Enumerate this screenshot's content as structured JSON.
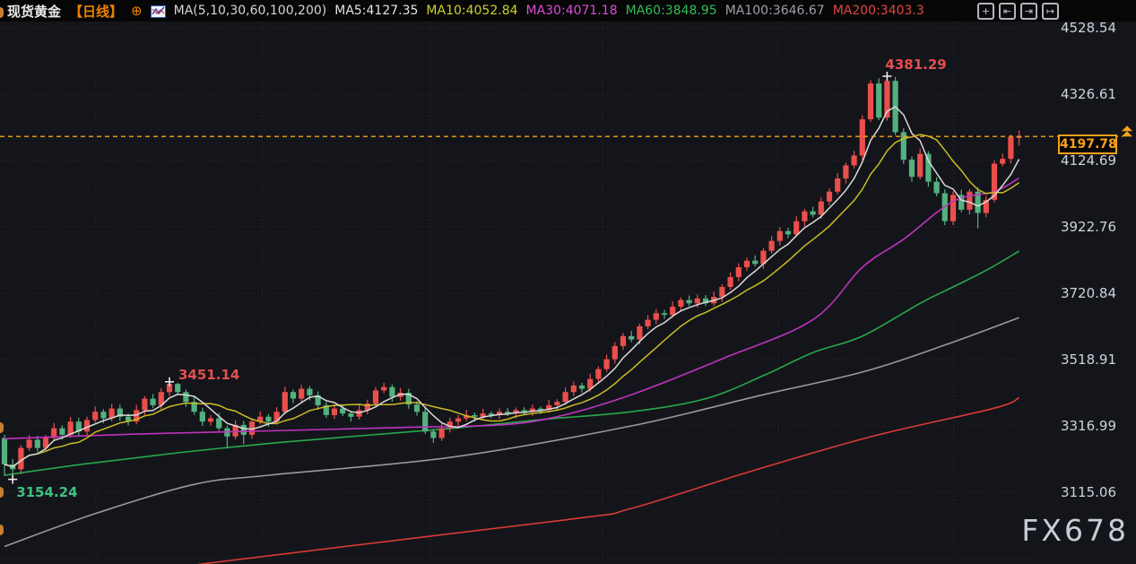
{
  "header": {
    "title": "现货黄金",
    "period": "【日线】",
    "globe_plus_icon": "⊕",
    "ma_settings_label": "MA(5,10,30,60,100,200)",
    "ma_values": [
      {
        "name": "MA5",
        "label": "MA5:4127.35",
        "color": "#e3e3e3"
      },
      {
        "name": "MA10",
        "label": "MA10:4052.84",
        "color": "#cfd12b"
      },
      {
        "name": "MA30",
        "label": "MA30:4071.18",
        "color": "#d74fd7"
      },
      {
        "name": "MA60",
        "label": "MA60:3848.95",
        "color": "#32bd57"
      },
      {
        "name": "MA100",
        "label": "MA100:3646.67",
        "color": "#9aa0a6"
      },
      {
        "name": "MA200",
        "label": "MA200:3403.3",
        "color": "#e2483f"
      }
    ]
  },
  "toolbar": {
    "buttons": [
      {
        "name": "crosshair",
        "glyph": "+"
      },
      {
        "name": "shrink-x",
        "glyph": "⇤"
      },
      {
        "name": "expand-x",
        "glyph": "⇥"
      },
      {
        "name": "jump-to-latest",
        "glyph": "↦"
      }
    ]
  },
  "price_label": {
    "value": "4197.78",
    "color": "#f7a21b"
  },
  "watermark": "FX678",
  "chart_data": {
    "type": "candlestick",
    "symbol": "现货黄金",
    "timeframe": "日线",
    "up_color": "#ea4f4c",
    "down_color": "#53b17f",
    "grid": true,
    "y_ticks": [
      4528.54,
      4326.61,
      4124.69,
      3922.76,
      3720.84,
      3518.91,
      3316.99,
      3115.06
    ],
    "current_price": 4197.78,
    "candles": [
      [
        3280,
        3290,
        3165,
        3200
      ],
      [
        3200,
        3216,
        3154.24,
        3185
      ],
      [
        3185,
        3258,
        3170,
        3250
      ],
      [
        3250,
        3289,
        3241,
        3275
      ],
      [
        3275,
        3287,
        3237,
        3250
      ],
      [
        3250,
        3290,
        3238,
        3280
      ],
      [
        3280,
        3326,
        3272,
        3310
      ],
      [
        3310,
        3318,
        3275,
        3290
      ],
      [
        3290,
        3344,
        3281,
        3330
      ],
      [
        3330,
        3342,
        3287,
        3300
      ],
      [
        3300,
        3345,
        3288,
        3335
      ],
      [
        3335,
        3376,
        3327,
        3360
      ],
      [
        3360,
        3368,
        3325,
        3340
      ],
      [
        3340,
        3384,
        3331,
        3370
      ],
      [
        3370,
        3382,
        3332,
        3345
      ],
      [
        3345,
        3355,
        3318,
        3330
      ],
      [
        3330,
        3381,
        3322,
        3365
      ],
      [
        3365,
        3408,
        3350,
        3400
      ],
      [
        3400,
        3414,
        3371,
        3380
      ],
      [
        3380,
        3432,
        3367,
        3420
      ],
      [
        3420,
        3451.14,
        3408,
        3445
      ],
      [
        3445,
        3448,
        3412,
        3420
      ],
      [
        3420,
        3428,
        3375,
        3390
      ],
      [
        3390,
        3404,
        3351,
        3360
      ],
      [
        3360,
        3372,
        3317,
        3330
      ],
      [
        3330,
        3350,
        3318,
        3340
      ],
      [
        3340,
        3356,
        3302,
        3310
      ],
      [
        3310,
        3318,
        3248,
        3285
      ],
      [
        3285,
        3334,
        3276,
        3320
      ],
      [
        3320,
        3332,
        3262,
        3290
      ],
      [
        3290,
        3340,
        3278,
        3330
      ],
      [
        3330,
        3361,
        3322,
        3345
      ],
      [
        3345,
        3353,
        3315,
        3330
      ],
      [
        3330,
        3374,
        3321,
        3360
      ],
      [
        3360,
        3436,
        3352,
        3420
      ],
      [
        3420,
        3428,
        3386,
        3400
      ],
      [
        3400,
        3442,
        3391,
        3430
      ],
      [
        3430,
        3438,
        3395,
        3410
      ],
      [
        3410,
        3422,
        3366,
        3380
      ],
      [
        3380,
        3390,
        3341,
        3350
      ],
      [
        3350,
        3382,
        3338,
        3370
      ],
      [
        3370,
        3381,
        3347,
        3355
      ],
      [
        3355,
        3363,
        3330,
        3345
      ],
      [
        3345,
        3384,
        3336,
        3365
      ],
      [
        3365,
        3397,
        3352,
        3385
      ],
      [
        3385,
        3435,
        3373,
        3425
      ],
      [
        3425,
        3448,
        3417,
        3435
      ],
      [
        3435,
        3443,
        3390,
        3405
      ],
      [
        3405,
        3432,
        3394,
        3418
      ],
      [
        3418,
        3430,
        3369,
        3382
      ],
      [
        3382,
        3392,
        3348,
        3360
      ],
      [
        3360,
        3376,
        3292,
        3300
      ],
      [
        3300,
        3308,
        3265,
        3280
      ],
      [
        3280,
        3324,
        3271,
        3310
      ],
      [
        3310,
        3342,
        3297,
        3330
      ],
      [
        3330,
        3350,
        3318,
        3340
      ],
      [
        3340,
        3366,
        3332,
        3350
      ],
      [
        3350,
        3358,
        3330,
        3345
      ],
      [
        3345,
        3369,
        3336,
        3355
      ],
      [
        3355,
        3362,
        3341,
        3350
      ],
      [
        3350,
        3370,
        3338,
        3360
      ],
      [
        3360,
        3371,
        3347,
        3355
      ],
      [
        3355,
        3373,
        3340,
        3365
      ],
      [
        3365,
        3374,
        3351,
        3360
      ],
      [
        3360,
        3382,
        3347,
        3370
      ],
      [
        3370,
        3376,
        3353,
        3365
      ],
      [
        3365,
        3396,
        3357,
        3380
      ],
      [
        3380,
        3398,
        3365,
        3390
      ],
      [
        3390,
        3434,
        3381,
        3420
      ],
      [
        3420,
        3452,
        3407,
        3440
      ],
      [
        3440,
        3448,
        3418,
        3430
      ],
      [
        3430,
        3476,
        3422,
        3460
      ],
      [
        3460,
        3498,
        3445,
        3490
      ],
      [
        3490,
        3534,
        3481,
        3520
      ],
      [
        3520,
        3572,
        3507,
        3560
      ],
      [
        3560,
        3600,
        3548,
        3590
      ],
      [
        3590,
        3606,
        3572,
        3580
      ],
      [
        3580,
        3628,
        3565,
        3620
      ],
      [
        3620,
        3654,
        3611,
        3640
      ],
      [
        3640,
        3672,
        3627,
        3660
      ],
      [
        3660,
        3670,
        3643,
        3655
      ],
      [
        3655,
        3696,
        3647,
        3680
      ],
      [
        3680,
        3708,
        3665,
        3700
      ],
      [
        3700,
        3714,
        3681,
        3690
      ],
      [
        3690,
        3717,
        3677,
        3705
      ],
      [
        3705,
        3715,
        3682,
        3690
      ],
      [
        3690,
        3726,
        3682,
        3710
      ],
      [
        3710,
        3748,
        3695,
        3740
      ],
      [
        3740,
        3784,
        3731,
        3770
      ],
      [
        3770,
        3812,
        3757,
        3800
      ],
      [
        3800,
        3830,
        3788,
        3820
      ],
      [
        3820,
        3836,
        3802,
        3810
      ],
      [
        3810,
        3858,
        3795,
        3850
      ],
      [
        3850,
        3894,
        3841,
        3880
      ],
      [
        3880,
        3922,
        3867,
        3910
      ],
      [
        3910,
        3920,
        3888,
        3900
      ],
      [
        3900,
        3956,
        3892,
        3940
      ],
      [
        3940,
        3978,
        3925,
        3970
      ],
      [
        3970,
        3984,
        3951,
        3960
      ],
      [
        3960,
        4012,
        3947,
        4000
      ],
      [
        4000,
        4040,
        3988,
        4030
      ],
      [
        4030,
        4086,
        4022,
        4070
      ],
      [
        4070,
        4118,
        4055,
        4110
      ],
      [
        4110,
        4154,
        4101,
        4140
      ],
      [
        4140,
        4262,
        4127,
        4250
      ],
      [
        4250,
        4369,
        4242,
        4359
      ],
      [
        4359,
        4375,
        4247,
        4255
      ],
      [
        4255,
        4381.29,
        4246,
        4367
      ],
      [
        4367,
        4379,
        4202,
        4211
      ],
      [
        4211,
        4223,
        4114,
        4127
      ],
      [
        4127,
        4137,
        4060,
        4075
      ],
      [
        4075,
        4161,
        4067,
        4145
      ],
      [
        4145,
        4153,
        4045,
        4060
      ],
      [
        4060,
        4074,
        4016,
        4025
      ],
      [
        4025,
        4037,
        3928,
        3940
      ],
      [
        3940,
        4030,
        3928,
        4020
      ],
      [
        4020,
        4036,
        3967,
        3975
      ],
      [
        3975,
        4038,
        3960,
        4030
      ],
      [
        4030,
        4044,
        3918,
        3965
      ],
      [
        3965,
        4017,
        3952,
        4005
      ],
      [
        4005,
        4125,
        3997,
        4115
      ],
      [
        4115,
        4146,
        4107,
        4130
      ],
      [
        4130,
        4204,
        4115,
        4196
      ],
      [
        4196,
        4216,
        4170,
        4197.78
      ]
    ],
    "ma_overlays": [
      {
        "name": "MA5",
        "type": "rolling",
        "window": 5,
        "color": "#dadada",
        "last_value": 4127.35
      },
      {
        "name": "MA10",
        "type": "rolling",
        "window": 10,
        "color": "#c9bd25",
        "last_value": 4052.84
      },
      {
        "name": "MA30",
        "type": "points",
        "color": "#bf33bf",
        "last_value": 4071.18,
        "points": [
          [
            0,
            3278
          ],
          [
            16,
            3292
          ],
          [
            32,
            3302
          ],
          [
            48,
            3312
          ],
          [
            60,
            3320
          ],
          [
            67,
            3345
          ],
          [
            76,
            3412
          ],
          [
            87,
            3521
          ],
          [
            98,
            3640
          ],
          [
            104,
            3800
          ],
          [
            109,
            3885
          ],
          [
            115,
            4000
          ],
          [
            120,
            4030
          ],
          [
            123,
            4071.18
          ]
        ]
      },
      {
        "name": "MA60",
        "type": "points",
        "color": "#28a94c",
        "last_value": 3848.95,
        "points": [
          [
            0,
            3167
          ],
          [
            10,
            3202
          ],
          [
            21,
            3235
          ],
          [
            34,
            3268
          ],
          [
            54,
            3309
          ],
          [
            65,
            3336
          ],
          [
            76,
            3360
          ],
          [
            85,
            3400
          ],
          [
            92,
            3470
          ],
          [
            98,
            3540
          ],
          [
            104,
            3590
          ],
          [
            111,
            3690
          ],
          [
            115,
            3740
          ],
          [
            119,
            3790
          ],
          [
            123,
            3848.95
          ]
        ]
      },
      {
        "name": "MA100",
        "type": "points",
        "color": "#999999",
        "last_value": 3646.67,
        "points": [
          [
            0,
            2950
          ],
          [
            11,
            3050
          ],
          [
            23,
            3139
          ],
          [
            32,
            3167
          ],
          [
            54,
            3221
          ],
          [
            76,
            3317
          ],
          [
            92,
            3412
          ],
          [
            104,
            3481
          ],
          [
            114,
            3563
          ],
          [
            123,
            3646.67
          ]
        ]
      },
      {
        "name": "MA200",
        "type": "points",
        "color": "#d93b35",
        "last_value": 3403.3,
        "points": [
          [
            21,
            2870
          ],
          [
            24,
            2897
          ],
          [
            68,
            3031
          ],
          [
            76,
            3066
          ],
          [
            90,
            3175
          ],
          [
            105,
            3284
          ],
          [
            120,
            3371
          ],
          [
            123,
            3403.3
          ]
        ]
      }
    ],
    "annotations": [
      {
        "text": "4381.29",
        "price": 4381.29,
        "candle_index": 107,
        "kind": "high",
        "color": "#e34f4f"
      },
      {
        "text": "3451.14",
        "price": 3451.14,
        "candle_index": 20,
        "kind": "high",
        "color": "#e34f4f"
      },
      {
        "text": "3154.24",
        "price": 3154.24,
        "candle_index": 1,
        "kind": "low",
        "color": "#3ec081"
      }
    ]
  }
}
